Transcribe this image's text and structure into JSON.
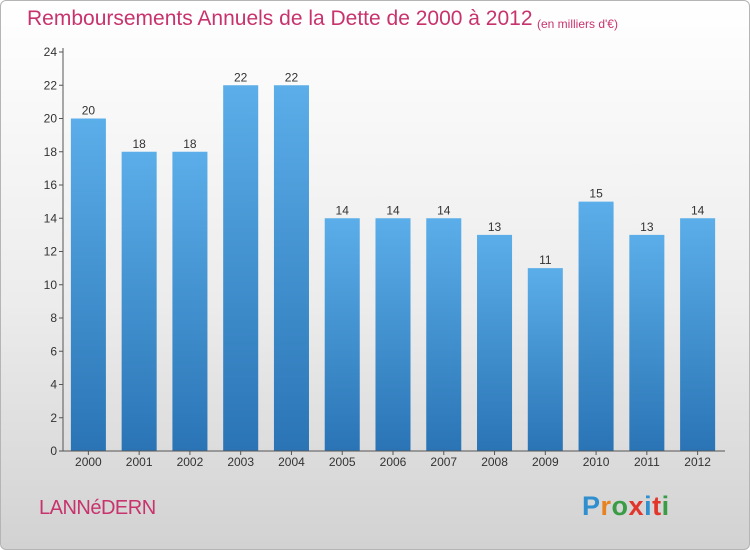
{
  "header": {
    "title": "Remboursements Annuels de la Dette de 2000 à 2012",
    "subtitle": "(en milliers d'€)"
  },
  "footer": {
    "commune": "LANNéDERN",
    "logo": {
      "text": "Proxiti",
      "colors": [
        "#2f8fcf",
        "#e8821e",
        "#3a9c45",
        "#e2352b",
        "#2f8fcf",
        "#e2352b",
        "#3a9c45"
      ]
    }
  },
  "colors": {
    "bar_top": "#5baee9",
    "bar_bottom": "#2a74b5",
    "label": "#333333",
    "axis": "#555555"
  },
  "chart_data": {
    "type": "bar",
    "categories": [
      "2000",
      "2001",
      "2002",
      "2003",
      "2004",
      "2005",
      "2006",
      "2007",
      "2008",
      "2009",
      "2010",
      "2011",
      "2012"
    ],
    "values": [
      20,
      18,
      18,
      22,
      22,
      14,
      14,
      14,
      13,
      11,
      15,
      13,
      14
    ],
    "ylim": [
      0,
      24
    ],
    "yticks": [
      0,
      2,
      4,
      6,
      8,
      10,
      12,
      14,
      16,
      18,
      20,
      22,
      24
    ],
    "grid": false,
    "legend": "none",
    "data_labels": true
  }
}
